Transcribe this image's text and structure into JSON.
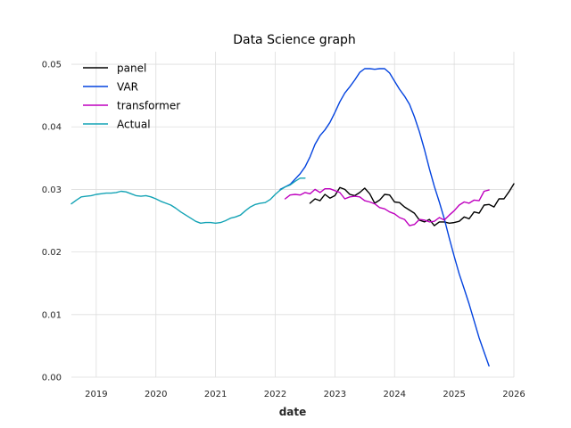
{
  "chart_data": {
    "type": "line",
    "title": "Data Science graph",
    "xlabel": "date",
    "ylabel": "",
    "xlim": [
      "2018-08-01",
      "2026-01-01"
    ],
    "ylim": [
      0,
      0.052
    ],
    "x_ticks": [
      "2019",
      "2020",
      "2021",
      "2022",
      "2023",
      "2024",
      "2025",
      "2026"
    ],
    "y_ticks": [
      "0.00",
      "0.01",
      "0.02",
      "0.03",
      "0.04",
      "0.05"
    ],
    "grid": true,
    "legend_position": "top-left",
    "series": [
      {
        "name": "panel",
        "color": "#000000",
        "points": [
          [
            "2022-08-01",
            0.0278
          ],
          [
            "2022-09-01",
            0.0285
          ],
          [
            "2022-10-01",
            0.0282
          ],
          [
            "2022-11-01",
            0.0292
          ],
          [
            "2022-12-01",
            0.0286
          ],
          [
            "2023-01-01",
            0.029
          ],
          [
            "2023-02-01",
            0.0303
          ],
          [
            "2023-03-01",
            0.03
          ],
          [
            "2023-04-01",
            0.0292
          ],
          [
            "2023-05-01",
            0.029
          ],
          [
            "2023-06-01",
            0.0295
          ],
          [
            "2023-07-01",
            0.0302
          ],
          [
            "2023-08-01",
            0.0293
          ],
          [
            "2023-09-01",
            0.0278
          ],
          [
            "2023-10-01",
            0.0283
          ],
          [
            "2023-11-01",
            0.0292
          ],
          [
            "2023-12-01",
            0.0291
          ],
          [
            "2024-01-01",
            0.028
          ],
          [
            "2024-02-01",
            0.0279
          ],
          [
            "2024-03-01",
            0.0272
          ],
          [
            "2024-04-01",
            0.0267
          ],
          [
            "2024-05-01",
            0.0262
          ],
          [
            "2024-06-01",
            0.0251
          ],
          [
            "2024-07-01",
            0.0248
          ],
          [
            "2024-08-01",
            0.0252
          ],
          [
            "2024-09-01",
            0.0242
          ],
          [
            "2024-10-01",
            0.0248
          ],
          [
            "2024-11-01",
            0.0248
          ],
          [
            "2024-12-01",
            0.0246
          ],
          [
            "2025-01-01",
            0.0247
          ],
          [
            "2025-02-01",
            0.0249
          ],
          [
            "2025-03-01",
            0.0256
          ],
          [
            "2025-04-01",
            0.0253
          ],
          [
            "2025-05-01",
            0.0264
          ],
          [
            "2025-06-01",
            0.0262
          ],
          [
            "2025-07-01",
            0.0275
          ],
          [
            "2025-08-01",
            0.0276
          ],
          [
            "2025-09-01",
            0.0272
          ],
          [
            "2025-10-01",
            0.0285
          ],
          [
            "2025-11-01",
            0.0285
          ],
          [
            "2025-12-01",
            0.0296
          ],
          [
            "2026-01-01",
            0.0309
          ]
        ]
      },
      {
        "name": "VAR",
        "color": "#0343df",
        "points": [
          [
            "2022-02-01",
            0.03
          ],
          [
            "2022-04-01",
            0.0308
          ],
          [
            "2022-06-01",
            0.0325
          ],
          [
            "2022-07-01",
            0.0336
          ],
          [
            "2022-08-01",
            0.0352
          ],
          [
            "2022-09-01",
            0.0372
          ],
          [
            "2022-10-01",
            0.0386
          ],
          [
            "2022-11-01",
            0.0395
          ],
          [
            "2022-12-01",
            0.0407
          ],
          [
            "2023-01-01",
            0.0423
          ],
          [
            "2023-02-01",
            0.044
          ],
          [
            "2023-03-01",
            0.0454
          ],
          [
            "2023-04-01",
            0.0464
          ],
          [
            "2023-05-01",
            0.0475
          ],
          [
            "2023-06-01",
            0.0487
          ],
          [
            "2023-07-01",
            0.0493
          ],
          [
            "2023-08-01",
            0.0493
          ],
          [
            "2023-09-01",
            0.0492
          ],
          [
            "2023-10-01",
            0.0493
          ],
          [
            "2023-11-01",
            0.0493
          ],
          [
            "2023-12-01",
            0.0486
          ],
          [
            "2024-01-01",
            0.0473
          ],
          [
            "2024-02-01",
            0.046
          ],
          [
            "2024-03-01",
            0.0449
          ],
          [
            "2024-04-01",
            0.0436
          ],
          [
            "2024-05-01",
            0.0416
          ],
          [
            "2024-06-01",
            0.0392
          ],
          [
            "2024-07-01",
            0.0364
          ],
          [
            "2024-08-01",
            0.0333
          ],
          [
            "2024-09-01",
            0.0305
          ],
          [
            "2024-10-01",
            0.028
          ],
          [
            "2024-11-01",
            0.0253
          ],
          [
            "2024-12-01",
            0.0222
          ],
          [
            "2025-01-01",
            0.0193
          ],
          [
            "2025-02-01",
            0.0165
          ],
          [
            "2025-03-01",
            0.0141
          ],
          [
            "2025-04-01",
            0.0117
          ],
          [
            "2025-05-01",
            0.009
          ],
          [
            "2025-06-01",
            0.0063
          ],
          [
            "2025-07-01",
            0.004
          ],
          [
            "2025-08-01",
            0.0018
          ]
        ]
      },
      {
        "name": "transformer",
        "color": "#bf00bf",
        "points": [
          [
            "2022-03-01",
            0.0285
          ],
          [
            "2022-04-01",
            0.0291
          ],
          [
            "2022-05-01",
            0.0292
          ],
          [
            "2022-06-01",
            0.0291
          ],
          [
            "2022-07-01",
            0.0295
          ],
          [
            "2022-08-01",
            0.0293
          ],
          [
            "2022-09-01",
            0.03
          ],
          [
            "2022-10-01",
            0.0295
          ],
          [
            "2022-11-01",
            0.0301
          ],
          [
            "2022-12-01",
            0.0301
          ],
          [
            "2023-01-01",
            0.0298
          ],
          [
            "2023-02-01",
            0.0295
          ],
          [
            "2023-03-01",
            0.0285
          ],
          [
            "2023-04-01",
            0.0288
          ],
          [
            "2023-05-01",
            0.0289
          ],
          [
            "2023-06-01",
            0.0288
          ],
          [
            "2023-07-01",
            0.0282
          ],
          [
            "2023-08-01",
            0.028
          ],
          [
            "2023-09-01",
            0.0277
          ],
          [
            "2023-10-01",
            0.0271
          ],
          [
            "2023-11-01",
            0.0269
          ],
          [
            "2023-12-01",
            0.0264
          ],
          [
            "2024-01-01",
            0.0261
          ],
          [
            "2024-02-01",
            0.0255
          ],
          [
            "2024-03-01",
            0.0252
          ],
          [
            "2024-04-01",
            0.0242
          ],
          [
            "2024-05-01",
            0.0244
          ],
          [
            "2024-06-01",
            0.0252
          ],
          [
            "2024-07-01",
            0.0251
          ],
          [
            "2024-08-01",
            0.0248
          ],
          [
            "2024-09-01",
            0.0249
          ],
          [
            "2024-10-01",
            0.0255
          ],
          [
            "2024-11-01",
            0.0251
          ],
          [
            "2024-12-01",
            0.0259
          ],
          [
            "2025-01-01",
            0.0266
          ],
          [
            "2025-02-01",
            0.0275
          ],
          [
            "2025-03-01",
            0.028
          ],
          [
            "2025-04-01",
            0.0278
          ],
          [
            "2025-05-01",
            0.0283
          ],
          [
            "2025-06-01",
            0.0282
          ],
          [
            "2025-07-01",
            0.0297
          ],
          [
            "2025-08-01",
            0.0299
          ]
        ]
      },
      {
        "name": "Actual",
        "color": "#13a3b5",
        "points": [
          [
            "2018-08-01",
            0.0277
          ],
          [
            "2018-09-01",
            0.0283
          ],
          [
            "2018-10-01",
            0.0288
          ],
          [
            "2018-11-01",
            0.0289
          ],
          [
            "2018-12-01",
            0.029
          ],
          [
            "2019-01-01",
            0.0292
          ],
          [
            "2019-02-01",
            0.0293
          ],
          [
            "2019-03-01",
            0.0294
          ],
          [
            "2019-04-01",
            0.0294
          ],
          [
            "2019-05-01",
            0.0295
          ],
          [
            "2019-06-01",
            0.0297
          ],
          [
            "2019-07-01",
            0.0296
          ],
          [
            "2019-08-01",
            0.0293
          ],
          [
            "2019-09-01",
            0.029
          ],
          [
            "2019-10-01",
            0.0289
          ],
          [
            "2019-11-01",
            0.029
          ],
          [
            "2019-12-01",
            0.0288
          ],
          [
            "2020-01-01",
            0.0285
          ],
          [
            "2020-02-01",
            0.0281
          ],
          [
            "2020-03-01",
            0.0278
          ],
          [
            "2020-04-01",
            0.0275
          ],
          [
            "2020-05-01",
            0.027
          ],
          [
            "2020-06-01",
            0.0264
          ],
          [
            "2020-07-01",
            0.0259
          ],
          [
            "2020-08-01",
            0.0254
          ],
          [
            "2020-09-01",
            0.0249
          ],
          [
            "2020-10-01",
            0.0246
          ],
          [
            "2020-11-01",
            0.0247
          ],
          [
            "2020-12-01",
            0.0247
          ],
          [
            "2021-01-01",
            0.0246
          ],
          [
            "2021-02-01",
            0.0247
          ],
          [
            "2021-03-01",
            0.025
          ],
          [
            "2021-04-01",
            0.0254
          ],
          [
            "2021-05-01",
            0.0256
          ],
          [
            "2021-06-01",
            0.0259
          ],
          [
            "2021-07-01",
            0.0266
          ],
          [
            "2021-08-01",
            0.0272
          ],
          [
            "2021-09-01",
            0.0276
          ],
          [
            "2021-10-01",
            0.0278
          ],
          [
            "2021-11-01",
            0.0279
          ],
          [
            "2021-12-01",
            0.0284
          ],
          [
            "2022-01-01",
            0.0292
          ],
          [
            "2022-02-01",
            0.0299
          ],
          [
            "2022-03-01",
            0.0304
          ],
          [
            "2022-04-01",
            0.0307
          ],
          [
            "2022-05-01",
            0.0313
          ],
          [
            "2022-06-01",
            0.0318
          ],
          [
            "2022-07-01",
            0.0318
          ]
        ]
      }
    ]
  }
}
